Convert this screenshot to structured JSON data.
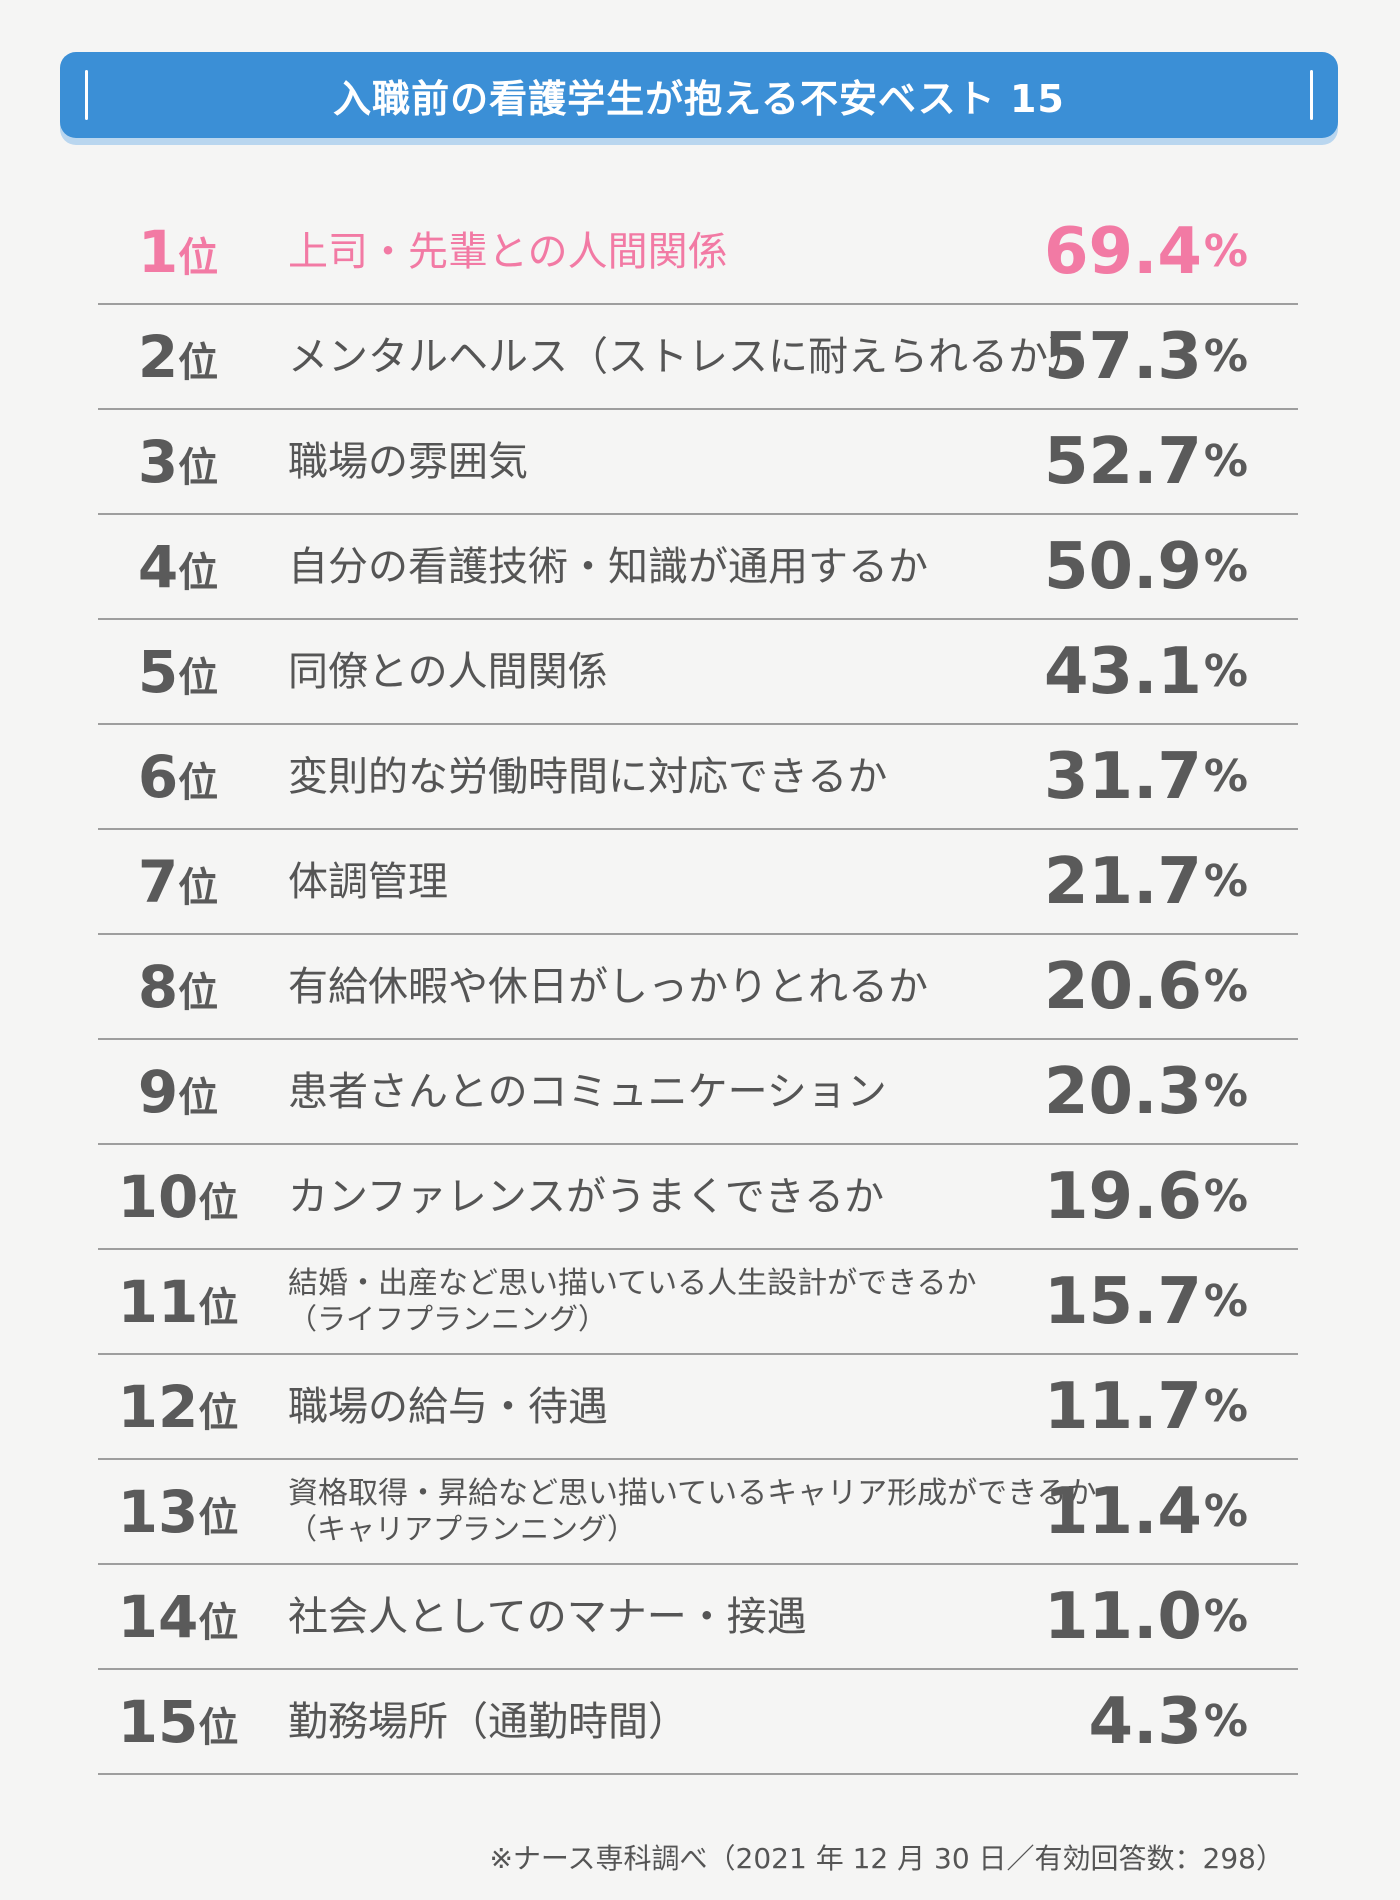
{
  "title": "入職前の看護学生が抱える不安ベスト 15",
  "rank_suffix": "位",
  "percent_suffix": "%",
  "colors": {
    "accent_blue": "#3b8fd6",
    "highlight_pink": "#f27aa4",
    "text_gray": "#555555",
    "background": "#f5f5f4"
  },
  "chart_data": {
    "type": "table",
    "title": "入職前の看護学生が抱える不安ベスト 15",
    "columns": [
      "rank",
      "item",
      "percent"
    ],
    "rows": [
      {
        "rank": "1",
        "item": "上司・先輩との人間関係",
        "sub": "",
        "value": "69.4"
      },
      {
        "rank": "2",
        "item": "メンタルヘルス（ストレスに耐えられるか）",
        "sub": "",
        "value": "57.3"
      },
      {
        "rank": "3",
        "item": "職場の雰囲気",
        "sub": "",
        "value": "52.7"
      },
      {
        "rank": "4",
        "item": "自分の看護技術・知識が通用するか",
        "sub": "",
        "value": "50.9"
      },
      {
        "rank": "5",
        "item": "同僚との人間関係",
        "sub": "",
        "value": "43.1"
      },
      {
        "rank": "6",
        "item": "変則的な労働時間に対応できるか",
        "sub": "",
        "value": "31.7"
      },
      {
        "rank": "7",
        "item": "体調管理",
        "sub": "",
        "value": "21.7"
      },
      {
        "rank": "8",
        "item": "有給休暇や休日がしっかりとれるか",
        "sub": "",
        "value": "20.6"
      },
      {
        "rank": "9",
        "item": "患者さんとのコミュニケーション",
        "sub": "",
        "value": "20.3"
      },
      {
        "rank": "10",
        "item": "カンファレンスがうまくできるか",
        "sub": "",
        "value": "19.6"
      },
      {
        "rank": "11",
        "item": "結婚・出産など思い描いている人生設計ができるか",
        "sub": "（ライフプランニング）",
        "value": "15.7"
      },
      {
        "rank": "12",
        "item": "職場の給与・待遇",
        "sub": "",
        "value": "11.7"
      },
      {
        "rank": "13",
        "item": "資格取得・昇給など思い描いているキャリア形成ができるか",
        "sub": "（キャリアプランニング）",
        "value": "11.4"
      },
      {
        "rank": "14",
        "item": "社会人としてのマナー・接遇",
        "sub": "",
        "value": "11.0"
      },
      {
        "rank": "15",
        "item": "勤務場所（通勤時間）",
        "sub": "",
        "value": "4.3"
      }
    ]
  },
  "footnote": "※ナース専科調べ（2021 年 12 月 30 日／有効回答数：298）"
}
